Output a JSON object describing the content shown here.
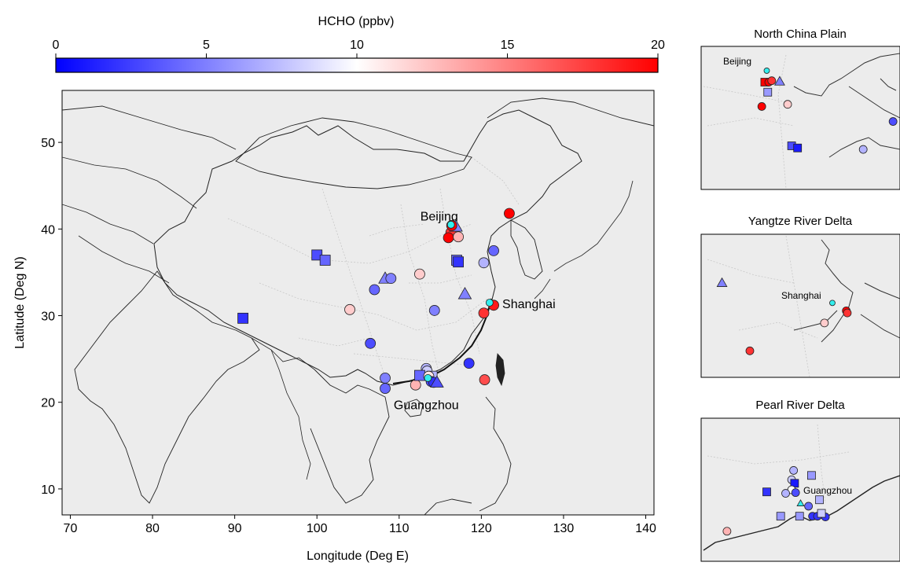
{
  "colorbar": {
    "title": "HCHO (ppbv)",
    "ticks": [
      0,
      5,
      10,
      15,
      20
    ],
    "range": [
      0,
      20
    ],
    "colors": [
      "#0000ff",
      "#ffffff",
      "#ff0000"
    ]
  },
  "main_map": {
    "xlabel": "Longitude (Deg E)",
    "ylabel": "Latitude (Deg N)",
    "xlim": [
      69,
      141
    ],
    "ylim": [
      7,
      56
    ],
    "xticks": [
      70,
      80,
      90,
      100,
      110,
      120,
      130,
      140
    ],
    "yticks": [
      10,
      20,
      30,
      40,
      50
    ],
    "background": "#ececec",
    "city_labels": [
      {
        "name": "Beijing",
        "lon": 116.4,
        "lat": 40.6
      },
      {
        "name": "Shanghai",
        "lon": 121.4,
        "lat": 31.4
      },
      {
        "name": "Guangzhou",
        "lon": 113.3,
        "lat": 21.2
      }
    ],
    "sites": [
      {
        "shape": "square",
        "lon": 91.0,
        "lat": 29.7,
        "hcho": 2
      },
      {
        "shape": "square",
        "lon": 100.0,
        "lat": 37.0,
        "hcho": 3
      },
      {
        "shape": "square",
        "lon": 101.0,
        "lat": 36.4,
        "hcho": 4
      },
      {
        "shape": "triangle",
        "lon": 108.3,
        "lat": 34.3,
        "hcho": 5
      },
      {
        "shape": "circle",
        "lon": 109.0,
        "lat": 34.3,
        "hcho": 5
      },
      {
        "shape": "circle",
        "lon": 107.0,
        "lat": 33.0,
        "hcho": 4
      },
      {
        "shape": "circle",
        "lon": 104.0,
        "lat": 30.7,
        "hcho": 12
      },
      {
        "shape": "circle",
        "lon": 106.5,
        "lat": 26.8,
        "hcho": 3
      },
      {
        "shape": "circle",
        "lon": 108.3,
        "lat": 22.8,
        "hcho": 5
      },
      {
        "shape": "circle",
        "lon": 108.3,
        "lat": 21.6,
        "hcho": 4
      },
      {
        "shape": "circle",
        "lon": 112.5,
        "lat": 34.8,
        "hcho": 12
      },
      {
        "shape": "circle",
        "lon": 114.3,
        "lat": 30.6,
        "hcho": 5
      },
      {
        "shape": "triangle",
        "lon": 118.0,
        "lat": 32.5,
        "hcho": 5
      },
      {
        "shape": "circle",
        "lon": 121.5,
        "lat": 37.5,
        "hcho": 4
      },
      {
        "shape": "circle",
        "lon": 120.3,
        "lat": 36.1,
        "hcho": 7
      },
      {
        "shape": "circle",
        "lon": 123.4,
        "lat": 41.8,
        "hcho": 20
      },
      {
        "shape": "square",
        "lon": 117.0,
        "lat": 36.4,
        "hcho": 4
      },
      {
        "shape": "square",
        "lon": 117.2,
        "lat": 36.2,
        "hcho": 2
      },
      {
        "shape": "circle",
        "lon": 116.3,
        "lat": 39.6,
        "hcho": 18
      },
      {
        "shape": "circle",
        "lon": 116.0,
        "lat": 39.0,
        "hcho": 20
      },
      {
        "shape": "circle",
        "lon": 117.2,
        "lat": 39.1,
        "hcho": 13
      },
      {
        "shape": "triangle",
        "lon": 116.9,
        "lat": 40.3,
        "hcho": 5
      },
      {
        "shape": "circle",
        "lon": 116.4,
        "lat": 40.4,
        "hcho": 20
      },
      {
        "shape": "circle",
        "lon": 121.5,
        "lat": 31.2,
        "hcho": 19
      },
      {
        "shape": "circle",
        "lon": 120.3,
        "lat": 30.3,
        "hcho": 18
      },
      {
        "shape": "circle",
        "lon": 118.5,
        "lat": 24.5,
        "hcho": 2
      },
      {
        "shape": "circle",
        "lon": 120.4,
        "lat": 22.6,
        "hcho": 17
      },
      {
        "shape": "circle",
        "lon": 112.0,
        "lat": 22.0,
        "hcho": 13
      },
      {
        "shape": "circle",
        "lon": 113.3,
        "lat": 23.9,
        "hcho": 7
      },
      {
        "shape": "circle",
        "lon": 113.4,
        "lat": 23.6,
        "hcho": 8
      },
      {
        "shape": "square",
        "lon": 112.5,
        "lat": 23.1,
        "hcho": 4
      },
      {
        "shape": "square",
        "lon": 114.0,
        "lat": 23.0,
        "hcho": 7
      },
      {
        "shape": "circle",
        "lon": 113.6,
        "lat": 23.0,
        "hcho": 11
      },
      {
        "shape": "circle",
        "lon": 113.9,
        "lat": 22.4,
        "hcho": 3
      },
      {
        "shape": "circle",
        "lon": 114.2,
        "lat": 22.3,
        "hcho": 2
      },
      {
        "shape": "triangle",
        "lon": 114.6,
        "lat": 22.3,
        "hcho": 3
      },
      {
        "shape": "circle",
        "lon": 116.3,
        "lat": 40.5,
        "hcho": null
      },
      {
        "shape": "circle",
        "lon": 121.0,
        "lat": 31.5,
        "hcho": null
      },
      {
        "shape": "circle",
        "lon": 113.5,
        "lat": 22.8,
        "hcho": null
      }
    ]
  },
  "insets": [
    {
      "title": "North China Plain",
      "city": "Beijing",
      "sites": [
        {
          "shape": "circle",
          "u": 0.33,
          "v": 0.17,
          "hcho": null
        },
        {
          "shape": "square",
          "u": 0.32,
          "v": 0.25,
          "hcho": 20
        },
        {
          "shape": "circle",
          "u": 0.34,
          "v": 0.25,
          "hcho": 20
        },
        {
          "shape": "circle",
          "u": 0.355,
          "v": 0.24,
          "hcho": 18
        },
        {
          "shape": "triangle",
          "u": 0.395,
          "v": 0.245,
          "hcho": 5
        },
        {
          "shape": "square",
          "u": 0.335,
          "v": 0.32,
          "hcho": 6
        },
        {
          "shape": "circle",
          "u": 0.305,
          "v": 0.42,
          "hcho": 20
        },
        {
          "shape": "circle",
          "u": 0.435,
          "v": 0.405,
          "hcho": 12
        },
        {
          "shape": "circle",
          "u": 0.965,
          "v": 0.525,
          "hcho": 3
        },
        {
          "shape": "square",
          "u": 0.455,
          "v": 0.695,
          "hcho": 3
        },
        {
          "shape": "square",
          "u": 0.485,
          "v": 0.71,
          "hcho": 1
        },
        {
          "shape": "circle",
          "u": 0.815,
          "v": 0.72,
          "hcho": 7
        }
      ]
    },
    {
      "title": "Yangtze River Delta",
      "city": "Shanghai",
      "sites": [
        {
          "shape": "triangle",
          "u": 0.105,
          "v": 0.34,
          "hcho": 5
        },
        {
          "shape": "circle",
          "u": 0.66,
          "v": 0.48,
          "hcho": null
        },
        {
          "shape": "circle",
          "u": 0.73,
          "v": 0.535,
          "hcho": 20
        },
        {
          "shape": "circle",
          "u": 0.735,
          "v": 0.55,
          "hcho": 18
        },
        {
          "shape": "circle",
          "u": 0.62,
          "v": 0.62,
          "hcho": 12
        },
        {
          "shape": "circle",
          "u": 0.245,
          "v": 0.815,
          "hcho": 18
        }
      ]
    },
    {
      "title": "Pearl River Delta",
      "city": "Guangzhou",
      "sites": [
        {
          "shape": "circle",
          "u": 0.465,
          "v": 0.365,
          "hcho": 7
        },
        {
          "shape": "square",
          "u": 0.555,
          "v": 0.4,
          "hcho": 6
        },
        {
          "shape": "circle",
          "u": 0.455,
          "v": 0.43,
          "hcho": 8
        },
        {
          "shape": "square",
          "u": 0.47,
          "v": 0.455,
          "hcho": 1
        },
        {
          "shape": "circle",
          "u": 0.455,
          "v": 0.5,
          "hcho": 10
        },
        {
          "shape": "circle",
          "u": 0.475,
          "v": 0.52,
          "hcho": 3
        },
        {
          "shape": "circle",
          "u": 0.425,
          "v": 0.525,
          "hcho": 7
        },
        {
          "shape": "square",
          "u": 0.33,
          "v": 0.515,
          "hcho": 2
        },
        {
          "shape": "square",
          "u": 0.595,
          "v": 0.57,
          "hcho": 7
        },
        {
          "shape": "triangle",
          "u": 0.5,
          "v": 0.595,
          "hcho": null
        },
        {
          "shape": "circle",
          "u": 0.54,
          "v": 0.615,
          "hcho": 4
        },
        {
          "shape": "square",
          "u": 0.495,
          "v": 0.685,
          "hcho": 6
        },
        {
          "shape": "circle",
          "u": 0.56,
          "v": 0.685,
          "hcho": 2
        },
        {
          "shape": "circle",
          "u": 0.585,
          "v": 0.685,
          "hcho": 2
        },
        {
          "shape": "circle",
          "u": 0.625,
          "v": 0.69,
          "hcho": 2
        },
        {
          "shape": "square",
          "u": 0.4,
          "v": 0.685,
          "hcho": 6
        },
        {
          "shape": "square",
          "u": 0.605,
          "v": 0.665,
          "hcho": 8
        },
        {
          "shape": "circle",
          "u": 0.13,
          "v": 0.79,
          "hcho": 13
        }
      ]
    }
  ],
  "no_value_color": "#33eeee"
}
